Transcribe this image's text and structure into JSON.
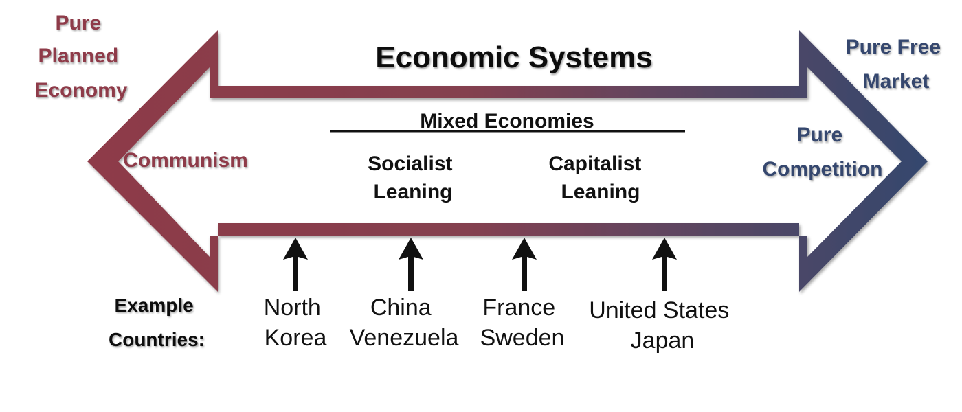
{
  "title": "Economic Systems",
  "left_end": {
    "label_lines": [
      "Pure",
      "Planned",
      "Economy"
    ],
    "system": "Communism",
    "color": "#8e3a48"
  },
  "right_end": {
    "label_lines": [
      "Pure Free",
      "Market"
    ],
    "system_lines": [
      "Pure",
      "Competition"
    ],
    "color": "#34476e"
  },
  "mixed": {
    "heading": "Mixed Economies",
    "socialist_lines": [
      "Socialist",
      "Leaning"
    ],
    "capitalist_lines": [
      "Capitalist",
      "Leaning"
    ]
  },
  "examples": {
    "label_lines": [
      "Example",
      "Countries:"
    ],
    "countries": [
      [
        "North",
        "Korea"
      ],
      [
        "China",
        "Venezuela"
      ],
      [
        "France",
        "Sweden"
      ],
      [
        "United States",
        "Japan"
      ]
    ]
  },
  "colors": {
    "arrow_left": "#8e3a48",
    "arrow_mid": "#6b4258",
    "arrow_right": "#34476e",
    "text": "#111111"
  }
}
